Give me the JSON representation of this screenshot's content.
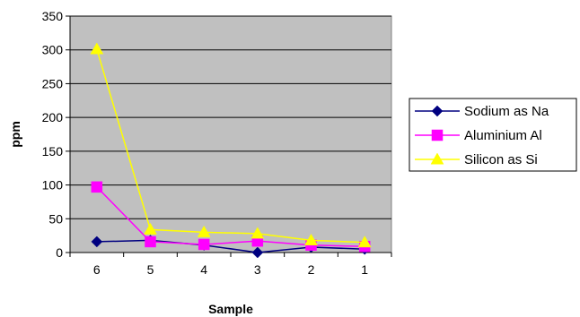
{
  "chart_data": {
    "type": "line",
    "title": "",
    "xlabel": "Sample",
    "ylabel": "ppm",
    "categories": [
      "6",
      "5",
      "4",
      "3",
      "2",
      "1"
    ],
    "ylim": [
      0,
      350
    ],
    "yticks": [
      0,
      50,
      100,
      150,
      200,
      250,
      300,
      350
    ],
    "grid": true,
    "legend_position": "right",
    "plot_background": "#c0c0c0",
    "series": [
      {
        "name": "Sodium as Na",
        "color": "#000080",
        "marker": "diamond",
        "values": [
          16,
          18,
          11,
          0,
          8,
          5
        ]
      },
      {
        "name": "Aluminium Al",
        "color": "#ff00ff",
        "marker": "square",
        "values": [
          97,
          16,
          12,
          17,
          11,
          9
        ]
      },
      {
        "name": "Silicon as Si",
        "color": "#ffff00",
        "marker": "triangle",
        "values": [
          301,
          34,
          30,
          28,
          18,
          15
        ]
      }
    ]
  }
}
